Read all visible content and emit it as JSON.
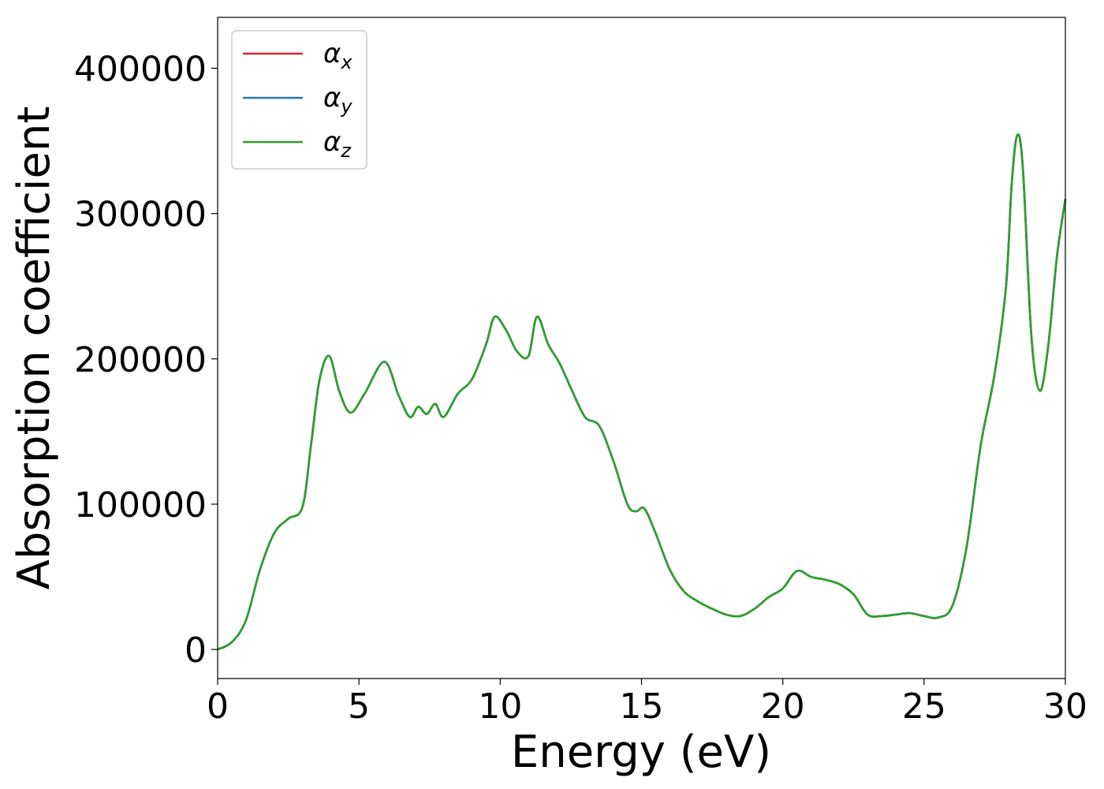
{
  "chart_data": {
    "type": "line",
    "title": "",
    "xlabel": "Energy (eV)",
    "ylabel": "Absorption coefficient",
    "xlim": [
      0,
      30
    ],
    "ylim": [
      -20000,
      435000
    ],
    "xticks": [
      0,
      5,
      10,
      15,
      20,
      25,
      30
    ],
    "xtick_labels": [
      "0",
      "5",
      "10",
      "15",
      "20",
      "25",
      "30"
    ],
    "yticks": [
      0,
      100000,
      200000,
      300000,
      400000
    ],
    "ytick_labels": [
      "0",
      "100000",
      "200000",
      "300000",
      "400000"
    ],
    "grid": false,
    "legend_position": "top-left",
    "legend": [
      {
        "symbol": "α",
        "sub": "x",
        "color": "#d62728"
      },
      {
        "symbol": "α",
        "sub": "y",
        "color": "#1f77b4"
      },
      {
        "symbol": "α",
        "sub": "z",
        "color": "#2ca02c"
      }
    ],
    "series_note": "All three components overlap; green (alpha_z) is drawn on top.",
    "x": [
      0,
      0.5,
      1.0,
      1.5,
      2.0,
      2.5,
      3.0,
      3.3,
      3.6,
      3.95,
      4.3,
      4.7,
      5.2,
      5.9,
      6.4,
      6.8,
      7.1,
      7.4,
      7.7,
      8.0,
      8.5,
      9.0,
      9.5,
      9.8,
      10.2,
      10.6,
      11.0,
      11.3,
      11.7,
      12.1,
      12.5,
      13.0,
      13.5,
      14.0,
      14.5,
      14.8,
      15.1,
      15.5,
      16.0,
      16.5,
      17.0,
      17.5,
      18.0,
      18.5,
      19.0,
      19.5,
      20.0,
      20.5,
      21.0,
      21.5,
      22.0,
      22.5,
      23.0,
      23.5,
      24.0,
      24.5,
      25.0,
      25.5,
      26.0,
      26.5,
      27.0,
      27.5,
      27.9,
      28.1,
      28.3,
      28.5,
      28.8,
      29.1,
      29.4,
      29.7,
      30.0
    ],
    "series": [
      {
        "values": [
          0,
          5000,
          20000,
          55000,
          80000,
          90000,
          98000,
          140000,
          185000,
          202000,
          178000,
          163000,
          176000,
          198000,
          175000,
          160000,
          167000,
          162000,
          169000,
          160000,
          176000,
          186000,
          210000,
          229000,
          220000,
          205000,
          202000,
          229000,
          210000,
          197000,
          180000,
          160000,
          154000,
          130000,
          100000,
          95000,
          97000,
          80000,
          55000,
          40000,
          33000,
          28000,
          24000,
          23000,
          28000,
          36000,
          42000,
          54000,
          50000,
          48000,
          45000,
          38000,
          24000,
          23000,
          24000,
          25000,
          23000,
          22000,
          30000,
          70000,
          140000,
          190000,
          250000,
          320000,
          354000,
          330000,
          215000,
          178000,
          210000,
          270000,
          310000
        ]
      },
      {
        "values": [
          0,
          5000,
          20000,
          55000,
          80000,
          90000,
          98000,
          140000,
          185000,
          202000,
          178000,
          163000,
          176000,
          198000,
          175000,
          160000,
          167000,
          162000,
          169000,
          160000,
          176000,
          186000,
          210000,
          229000,
          220000,
          205000,
          202000,
          229000,
          210000,
          197000,
          180000,
          160000,
          154000,
          130000,
          100000,
          95000,
          97000,
          80000,
          55000,
          40000,
          33000,
          28000,
          24000,
          23000,
          28000,
          36000,
          42000,
          54000,
          50000,
          48000,
          45000,
          38000,
          24000,
          23000,
          24000,
          25000,
          23000,
          22000,
          30000,
          70000,
          140000,
          190000,
          250000,
          320000,
          354000,
          330000,
          215000,
          178000,
          210000,
          270000,
          310000
        ]
      },
      {
        "values": [
          0,
          5000,
          20000,
          55000,
          80000,
          90000,
          98000,
          140000,
          185000,
          202000,
          178000,
          163000,
          176000,
          198000,
          175000,
          160000,
          167000,
          162000,
          169000,
          160000,
          176000,
          186000,
          210000,
          229000,
          220000,
          205000,
          202000,
          229000,
          210000,
          197000,
          180000,
          160000,
          154000,
          130000,
          100000,
          95000,
          97000,
          80000,
          55000,
          40000,
          33000,
          28000,
          24000,
          23000,
          28000,
          36000,
          42000,
          54000,
          50000,
          48000,
          45000,
          38000,
          24000,
          23000,
          24000,
          25000,
          23000,
          22000,
          30000,
          70000,
          140000,
          190000,
          250000,
          320000,
          354000,
          330000,
          215000,
          178000,
          210000,
          270000,
          310000
        ]
      }
    ]
  }
}
